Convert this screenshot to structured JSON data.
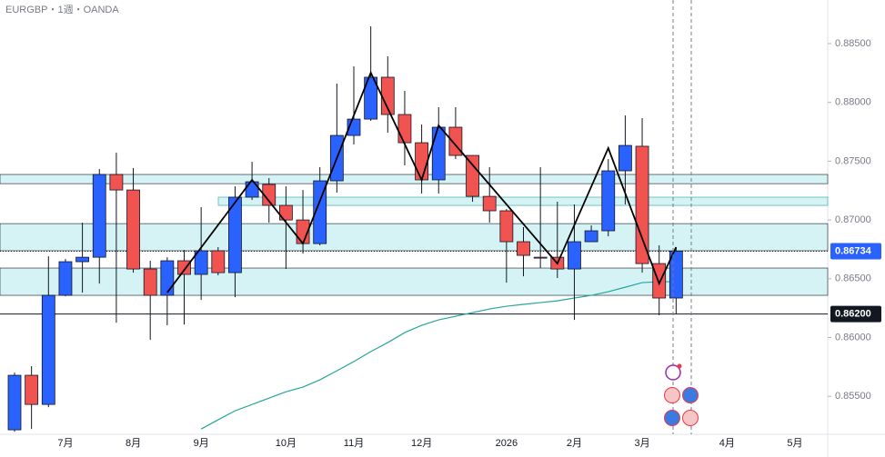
{
  "chart_data": {
    "type": "candlestick",
    "title": "EURGBP・1週・OANDA",
    "categories": [
      null,
      null,
      null,
      "7月",
      null,
      null,
      null,
      "8月",
      null,
      null,
      null,
      "9月",
      null,
      null,
      null,
      null,
      "10月",
      null,
      null,
      null,
      "11月",
      null,
      null,
      null,
      "12月",
      null,
      null,
      null,
      null,
      "2026",
      null,
      null,
      null,
      "2月",
      null,
      null,
      null,
      "3月",
      null,
      null,
      null,
      null,
      "4月",
      null,
      null,
      null,
      "5月",
      null,
      null
    ],
    "open": [
      0.85215,
      0.85679,
      0.85431,
      0.86359,
      0.86645,
      0.86683,
      0.87387,
      0.87255,
      0.86583,
      0.86359,
      0.86653,
      0.86537,
      0.86738,
      0.86552,
      0.87194,
      0.87302,
      0.87124,
      0.87,
      0.86799,
      0.87333,
      0.87719,
      0.87858,
      0.88214,
      0.87897,
      0.87657,
      0.87341,
      0.87789,
      0.87549,
      0.87201,
      0.87078,
      0.86815,
      0.86683,
      0.86683,
      0.86583,
      0.86815,
      0.86908,
      0.87418,
      0.87627,
      0.86629,
      0.86336,
      null,
      null,
      null,
      null,
      null,
      null,
      null,
      null,
      null
    ],
    "high": [
      0.85702,
      0.85756,
      0.86691,
      0.86668,
      0.86977,
      0.87433,
      0.87572,
      0.87441,
      0.86653,
      0.86683,
      0.86745,
      0.87109,
      0.86769,
      0.87286,
      0.87495,
      0.87356,
      0.87286,
      0.87255,
      0.87449,
      0.8816,
      0.88307,
      0.88647,
      0.88392,
      0.88098,
      0.87812,
      0.87959,
      0.87959,
      0.87549,
      0.87449,
      0.87093,
      0.86939,
      0.87449,
      0.87155,
      0.87132,
      0.86954,
      0.87518,
      0.87889,
      0.87866,
      0.86784,
      0.86769,
      null,
      null,
      null,
      null,
      null,
      null,
      null,
      null,
      null
    ],
    "low": [
      0.85199,
      0.85222,
      0.85408,
      0.86351,
      0.86382,
      0.86459,
      0.86127,
      0.86552,
      0.8598,
      0.86104,
      0.86111,
      0.8632,
      0.86529,
      0.86343,
      0.8717,
      0.86977,
      0.86583,
      0.86714,
      0.86784,
      0.87232,
      0.87642,
      0.87843,
      0.87742,
      0.87464,
      0.87225,
      0.87225,
      0.87518,
      0.87155,
      0.86977,
      0.86467,
      0.86521,
      0.86591,
      0.86506,
      0.8615,
      0.86815,
      0.86861,
      0.87132,
      0.86552,
      0.86189,
      0.86197,
      null,
      null,
      null,
      null,
      null,
      null,
      null,
      null,
      null
    ],
    "close": [
      0.85679,
      0.85431,
      0.86359,
      0.86645,
      0.86683,
      0.87387,
      0.87255,
      0.86583,
      0.86359,
      0.86653,
      0.86537,
      0.86738,
      0.86552,
      0.87194,
      0.87325,
      0.87124,
      0.87,
      0.86799,
      0.87333,
      0.87719,
      0.87858,
      0.88214,
      0.87897,
      0.87657,
      0.87341,
      0.87789,
      0.87549,
      0.87201,
      0.87078,
      0.86815,
      0.86699,
      0.86676,
      0.86583,
      0.86815,
      0.86908,
      0.87418,
      0.87634,
      0.86629,
      0.86336,
      0.86734,
      null,
      null,
      null,
      null,
      null,
      null,
      null,
      null,
      null
    ],
    "up_color": "#2962ff",
    "down_color": "#f05350",
    "moving_average": {
      "color": "#26a69a",
      "values": [
        null,
        null,
        null,
        null,
        null,
        null,
        null,
        null,
        null,
        null,
        null,
        0.85222,
        0.853,
        0.85377,
        0.85431,
        0.85485,
        0.85539,
        0.85578,
        0.8564,
        0.85717,
        0.85795,
        0.8588,
        0.85957,
        0.86042,
        0.86104,
        0.8615,
        0.86181,
        0.86212,
        0.86243,
        0.86266,
        0.86282,
        0.86297,
        0.86312,
        0.86336,
        0.86359,
        0.8639,
        0.86428,
        0.86467,
        0.86475,
        0.86475,
        null,
        null,
        null,
        null,
        null,
        null,
        null,
        null,
        null
      ]
    },
    "zigzag": {
      "color": "#000000",
      "x": [
        9,
        14,
        17,
        21,
        24,
        25,
        32,
        35,
        38,
        39
      ],
      "values": [
        0.86382,
        0.87341,
        0.86799,
        0.88253,
        0.87341,
        0.87804,
        0.86629,
        0.87611,
        0.86459,
        0.86769
      ]
    },
    "zones": [
      [
        0.87387,
        0.87309
      ],
      [
        0.87194,
        0.87124
      ],
      [
        0.86969,
        0.86738
      ],
      [
        0.86591,
        0.86359
      ]
    ],
    "zone_color": "#d5f3f5",
    "last_price": 0.86734,
    "level_line": {
      "value": 0.862,
      "label": "0.86200"
    },
    "ylim": [
      0.85177,
      0.88871
    ],
    "yticks": [
      {
        "value": 0.855,
        "label": "0.85500"
      },
      {
        "value": 0.86,
        "label": "0.86000"
      },
      {
        "value": 0.865,
        "label": "0.86500"
      },
      {
        "value": 0.87,
        "label": "0.87000"
      },
      {
        "value": 0.875,
        "label": "0.87500"
      },
      {
        "value": 0.88,
        "label": "0.88000"
      },
      {
        "value": 0.885,
        "label": "0.88500"
      }
    ]
  }
}
